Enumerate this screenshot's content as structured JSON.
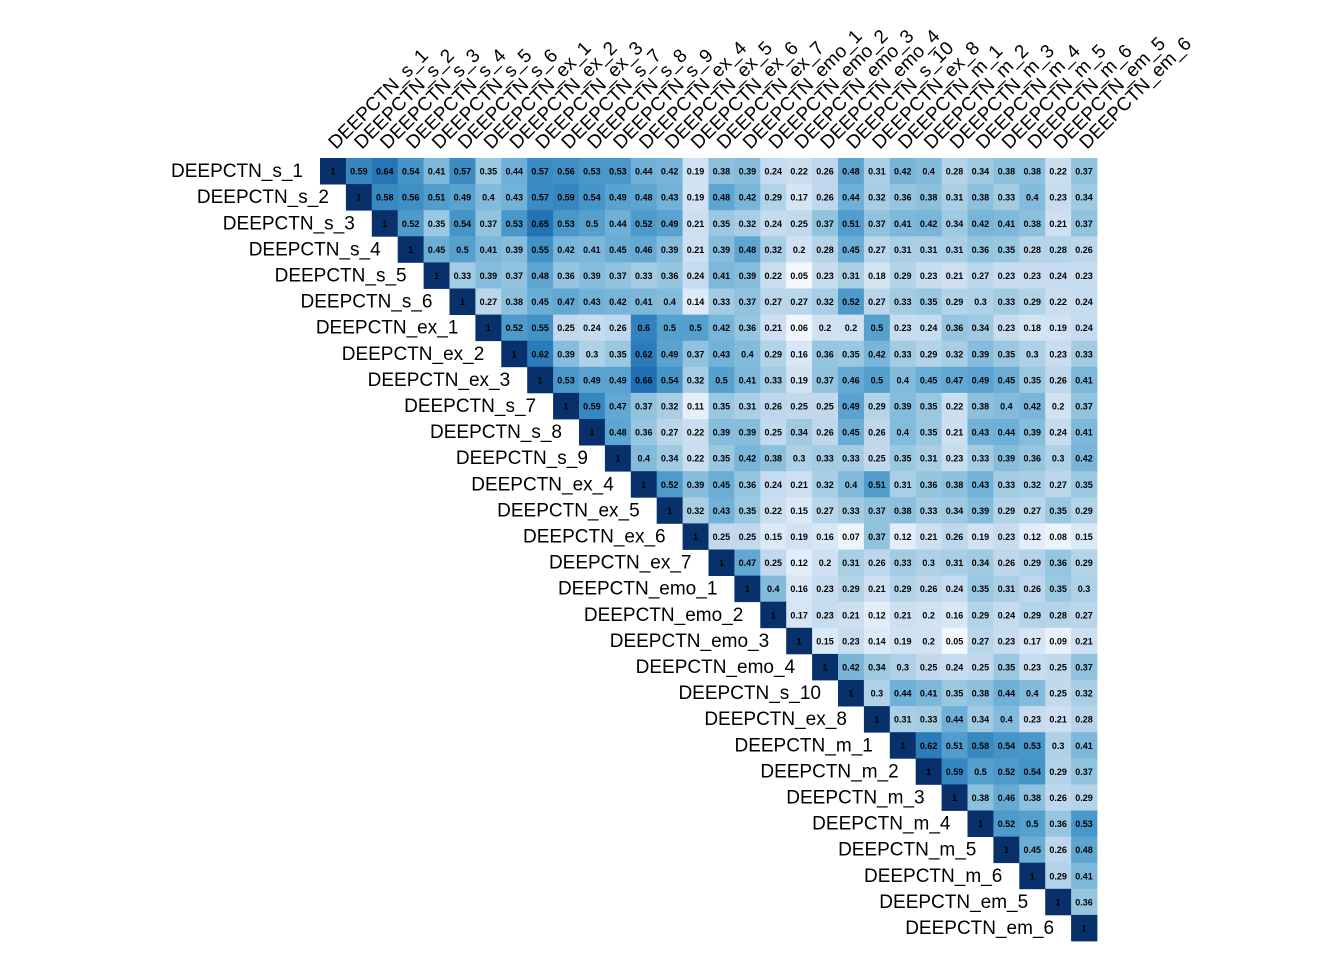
{
  "chart_data": {
    "type": "heatmap",
    "variables": [
      "DEEPCTN_s_1",
      "DEEPCTN_s_2",
      "DEEPCTN_s_3",
      "DEEPCTN_s_4",
      "DEEPCTN_s_5",
      "DEEPCTN_s_6",
      "DEEPCTN_ex_1",
      "DEEPCTN_ex_2",
      "DEEPCTN_ex_3",
      "DEEPCTN_s_7",
      "DEEPCTN_s_8",
      "DEEPCTN_s_9",
      "DEEPCTN_ex_4",
      "DEEPCTN_ex_5",
      "DEEPCTN_ex_6",
      "DEEPCTN_ex_7",
      "DEEPCTN_emo_1",
      "DEEPCTN_emo_2",
      "DEEPCTN_emo_3",
      "DEEPCTN_emo_4",
      "DEEPCTN_s_10",
      "DEEPCTN_ex_8",
      "DEEPCTN_m_1",
      "DEEPCTN_m_2",
      "DEEPCTN_m_3",
      "DEEPCTN_m_4",
      "DEEPCTN_m_5",
      "DEEPCTN_m_6",
      "DEEPCTN_em_5",
      "DEEPCTN_em_6"
    ],
    "upper_triangle_rows": [
      [
        1,
        0.59,
        0.64,
        0.54,
        0.41,
        0.57,
        0.35,
        0.44,
        0.57,
        0.56,
        0.53,
        0.53,
        0.44,
        0.42,
        0.19,
        0.38,
        0.39,
        0.24,
        0.22,
        0.26,
        0.48,
        0.31,
        0.42,
        0.4,
        0.28,
        0.34,
        0.38,
        0.38,
        0.22,
        0.37
      ],
      [
        1,
        0.58,
        0.56,
        0.51,
        0.49,
        0.4,
        0.43,
        0.57,
        0.59,
        0.54,
        0.49,
        0.48,
        0.43,
        0.19,
        0.48,
        0.42,
        0.29,
        0.17,
        0.26,
        0.44,
        0.32,
        0.36,
        0.38,
        0.31,
        0.38,
        0.33,
        0.4,
        0.23,
        0.34
      ],
      [
        1,
        0.52,
        0.35,
        0.54,
        0.37,
        0.53,
        0.65,
        0.53,
        0.5,
        0.44,
        0.52,
        0.49,
        0.21,
        0.35,
        0.32,
        0.24,
        0.25,
        0.37,
        0.51,
        0.37,
        0.41,
        0.42,
        0.34,
        0.42,
        0.41,
        0.38,
        0.21,
        0.37
      ],
      [
        1,
        0.45,
        0.5,
        0.41,
        0.39,
        0.55,
        0.42,
        0.41,
        0.45,
        0.46,
        0.39,
        0.21,
        0.39,
        0.48,
        0.32,
        0.2,
        0.28,
        0.45,
        0.27,
        0.31,
        0.31,
        0.31,
        0.36,
        0.35,
        0.28,
        0.28,
        0.26
      ],
      [
        1,
        0.33,
        0.39,
        0.37,
        0.48,
        0.36,
        0.39,
        0.37,
        0.33,
        0.36,
        0.24,
        0.41,
        0.39,
        0.22,
        0.05,
        0.23,
        0.31,
        0.18,
        0.29,
        0.23,
        0.21,
        0.27,
        0.23,
        0.23,
        0.24,
        0.23
      ],
      [
        1,
        0.27,
        0.38,
        0.45,
        0.47,
        0.43,
        0.42,
        0.41,
        0.4,
        0.14,
        0.33,
        0.37,
        0.27,
        0.27,
        0.32,
        0.52,
        0.27,
        0.33,
        0.35,
        0.29,
        0.3,
        0.33,
        0.29,
        0.22,
        0.24
      ],
      [
        1,
        0.52,
        0.55,
        0.25,
        0.24,
        0.26,
        0.6,
        0.5,
        0.5,
        0.42,
        0.36,
        0.21,
        0.06,
        0.2,
        0.2,
        0.5,
        0.23,
        0.24,
        0.36,
        0.34,
        0.23,
        0.18,
        0.19,
        0.24
      ],
      [
        1,
        0.62,
        0.39,
        0.3,
        0.35,
        0.62,
        0.49,
        0.37,
        0.43,
        0.4,
        0.29,
        0.16,
        0.36,
        0.35,
        0.42,
        0.33,
        0.29,
        0.32,
        0.39,
        0.35,
        0.3,
        0.23,
        0.33
      ],
      [
        1,
        0.53,
        0.49,
        0.49,
        0.66,
        0.54,
        0.32,
        0.5,
        0.41,
        0.33,
        0.19,
        0.37,
        0.46,
        0.5,
        0.4,
        0.45,
        0.47,
        0.49,
        0.45,
        0.35,
        0.26,
        0.41
      ],
      [
        1,
        0.59,
        0.47,
        0.37,
        0.32,
        0.11,
        0.35,
        0.31,
        0.26,
        0.25,
        0.25,
        0.49,
        0.29,
        0.39,
        0.35,
        0.22,
        0.38,
        0.4,
        0.42,
        0.2,
        0.37
      ],
      [
        1,
        0.48,
        0.36,
        0.27,
        0.22,
        0.39,
        0.39,
        0.25,
        0.34,
        0.26,
        0.45,
        0.26,
        0.4,
        0.35,
        0.21,
        0.43,
        0.44,
        0.39,
        0.24,
        0.41
      ],
      [
        1,
        0.4,
        0.34,
        0.22,
        0.35,
        0.42,
        0.38,
        0.3,
        0.33,
        0.33,
        0.25,
        0.35,
        0.31,
        0.23,
        0.33,
        0.39,
        0.36,
        0.3,
        0.42
      ],
      [
        1,
        0.52,
        0.39,
        0.45,
        0.36,
        0.24,
        0.21,
        0.32,
        0.4,
        0.51,
        0.31,
        0.36,
        0.38,
        0.43,
        0.33,
        0.32,
        0.27,
        0.35
      ],
      [
        1,
        0.32,
        0.43,
        0.35,
        0.22,
        0.15,
        0.27,
        0.33,
        0.37,
        0.38,
        0.33,
        0.34,
        0.39,
        0.29,
        0.27,
        0.35,
        0.29
      ],
      [
        1,
        0.25,
        0.25,
        0.15,
        0.19,
        0.16,
        0.07,
        0.37,
        0.12,
        0.21,
        0.26,
        0.19,
        0.23,
        0.12,
        0.08,
        0.15
      ],
      [
        1,
        0.47,
        0.25,
        0.12,
        0.2,
        0.31,
        0.26,
        0.33,
        0.3,
        0.31,
        0.34,
        0.26,
        0.29,
        0.36,
        0.29
      ],
      [
        1,
        0.4,
        0.16,
        0.23,
        0.29,
        0.21,
        0.29,
        0.26,
        0.24,
        0.35,
        0.31,
        0.26,
        0.35,
        0.3
      ],
      [
        1,
        0.17,
        0.23,
        0.21,
        0.12,
        0.21,
        0.2,
        0.16,
        0.29,
        0.24,
        0.29,
        0.28,
        0.27
      ],
      [
        1,
        0.15,
        0.23,
        0.14,
        0.19,
        0.2,
        0.05,
        0.27,
        0.23,
        0.17,
        0.09,
        0.21
      ],
      [
        1,
        0.42,
        0.34,
        0.3,
        0.25,
        0.24,
        0.25,
        0.35,
        0.23,
        0.25,
        0.37
      ],
      [
        1,
        0.3,
        0.44,
        0.41,
        0.35,
        0.38,
        0.44,
        0.4,
        0.25,
        0.32
      ],
      [
        1,
        0.31,
        0.33,
        0.44,
        0.34,
        0.4,
        0.23,
        0.21,
        0.28
      ],
      [
        1,
        0.62,
        0.51,
        0.58,
        0.54,
        0.53,
        0.3,
        0.41
      ],
      [
        1,
        0.59,
        0.5,
        0.52,
        0.54,
        0.29,
        0.37
      ],
      [
        1,
        0.38,
        0.46,
        0.38,
        0.26,
        0.29
      ],
      [
        1,
        0.52,
        0.5,
        0.36,
        0.53
      ],
      [
        1,
        0.45,
        0.26,
        0.48
      ],
      [
        1,
        0.29,
        0.41
      ],
      [
        1,
        0.36
      ],
      [
        1
      ]
    ],
    "color_scale": {
      "low": "#f7fbff",
      "mid": "#6baed6",
      "high": "#08306b"
    },
    "value_label_color": "#000000",
    "grid": false,
    "legend": "none"
  }
}
